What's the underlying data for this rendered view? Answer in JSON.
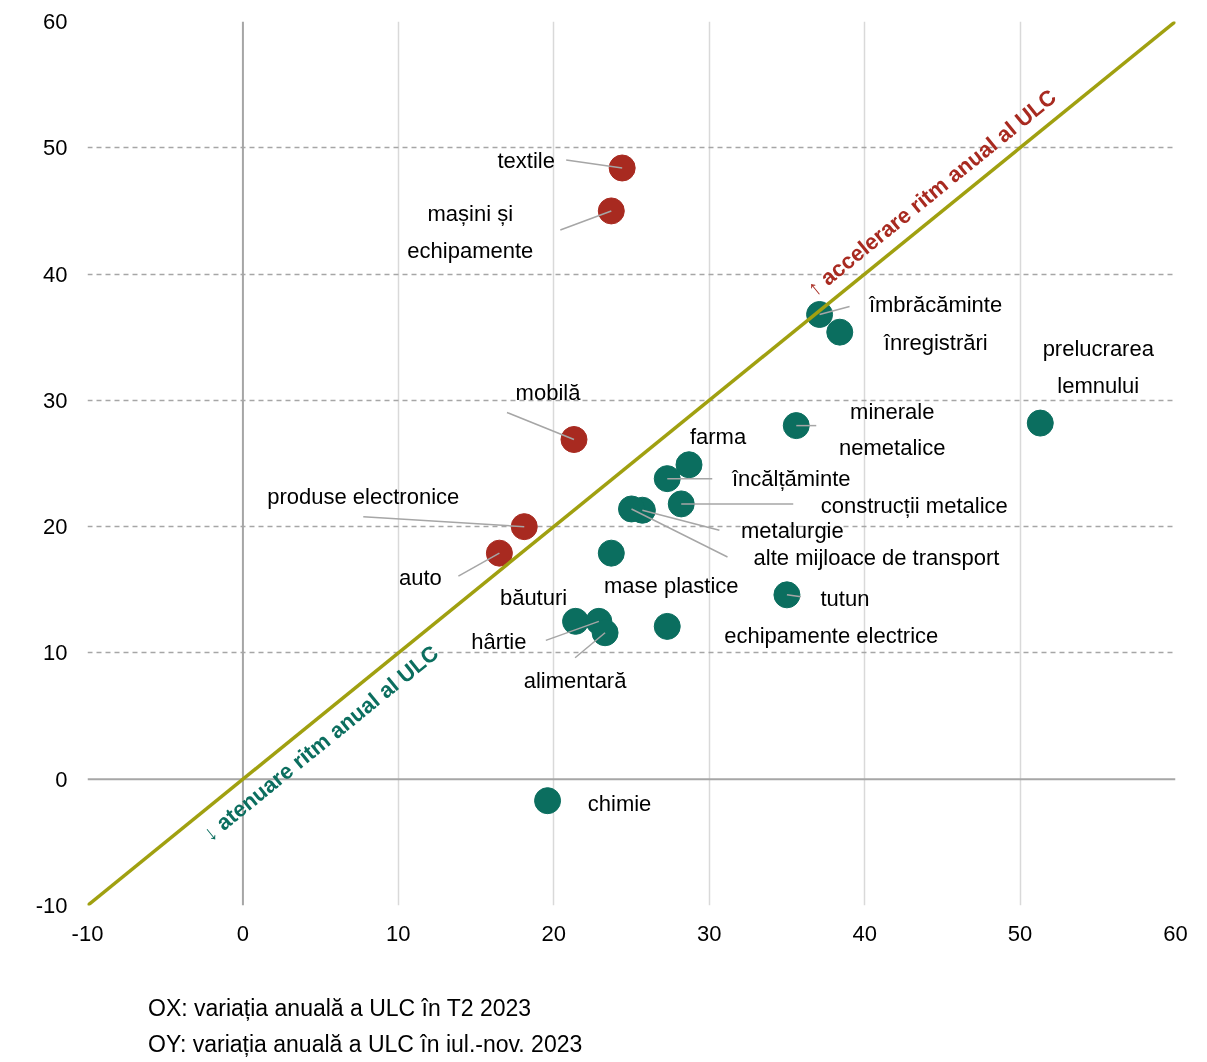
{
  "chart_data": {
    "type": "scatter",
    "xlim": [
      -10,
      60
    ],
    "ylim": [
      -10,
      60
    ],
    "xticks": [
      -10,
      0,
      10,
      20,
      30,
      40,
      50,
      60
    ],
    "yticks": [
      -10,
      0,
      10,
      20,
      30,
      40,
      50,
      60
    ],
    "grid": true,
    "marker": "circle",
    "series": [
      {
        "color": "#a82a20",
        "x": [
          24.4,
          23.7,
          21.3,
          18.1,
          16.5
        ],
        "values": [
          48.4,
          45.0,
          26.9,
          20.0,
          17.9
        ]
      },
      {
        "color": "#0b6e5f",
        "x": [
          37.1,
          38.4,
          51.3,
          35.6,
          28.7,
          27.3,
          28.2,
          25.7,
          25.0,
          23.7,
          35.0,
          27.3,
          21.4,
          22.9,
          23.3,
          19.6
        ],
        "values": [
          36.8,
          35.4,
          28.2,
          28.0,
          24.9,
          23.8,
          21.8,
          21.3,
          21.4,
          17.9,
          14.6,
          12.1,
          12.5,
          12.5,
          11.6,
          -1.7
        ]
      },
      {
        "type": "line",
        "marker": "none",
        "color": "#a0a010",
        "x": [
          -10,
          60
        ],
        "values": [
          -10,
          60
        ]
      }
    ],
    "annotations": [
      {
        "text": "textile",
        "x": 24.4,
        "y": 48.4
      },
      {
        "text": "mașini și\nechipamente",
        "x": 23.7,
        "y": 45.0
      },
      {
        "text": "mobilă",
        "x": 21.3,
        "y": 26.9
      },
      {
        "text": "produse electronice",
        "x": 18.1,
        "y": 20.0
      },
      {
        "text": "auto",
        "x": 16.5,
        "y": 17.9
      },
      {
        "text": "îmbrăcăminte",
        "x": 37.1,
        "y": 36.8
      },
      {
        "text": "înregistrări",
        "x": 38.4,
        "y": 35.4
      },
      {
        "text": "prelucrarea\nlemnului",
        "x": 51.3,
        "y": 28.2
      },
      {
        "text": "minerale\nnemetalice",
        "x": 35.6,
        "y": 28.0
      },
      {
        "text": "farma",
        "x": 28.7,
        "y": 24.9
      },
      {
        "text": "încălțăminte",
        "x": 27.3,
        "y": 23.8
      },
      {
        "text": "construcții metalice",
        "x": 28.2,
        "y": 21.8
      },
      {
        "text": "metalurgie",
        "x": 25.7,
        "y": 21.3
      },
      {
        "text": "alte mijloace de transport",
        "x": 25.0,
        "y": 21.4
      },
      {
        "text": "mase plastice",
        "x": 23.7,
        "y": 17.9
      },
      {
        "text": "tutun",
        "x": 35.0,
        "y": 14.6
      },
      {
        "text": "echipamente electrice",
        "x": 27.3,
        "y": 12.1
      },
      {
        "text": "băuturi",
        "x": 21.4,
        "y": 12.5
      },
      {
        "text": "hârtie",
        "x": 22.9,
        "y": 12.5
      },
      {
        "text": "alimentară",
        "x": 23.3,
        "y": 11.6
      },
      {
        "text": "chimie",
        "x": 19.6,
        "y": -1.7
      },
      {
        "text": "↑ accelerare ritm anual al ULC",
        "x": 45.2,
        "y": 45.2
      },
      {
        "text": "↓ atenuare ritm anual al ULC",
        "x": 4.1,
        "y": 4.1
      },
      "OX: variația anuală a ULC în T2 2023",
      "OY: variația anuală a ULC în iul.-nov. 2023"
    ]
  }
}
